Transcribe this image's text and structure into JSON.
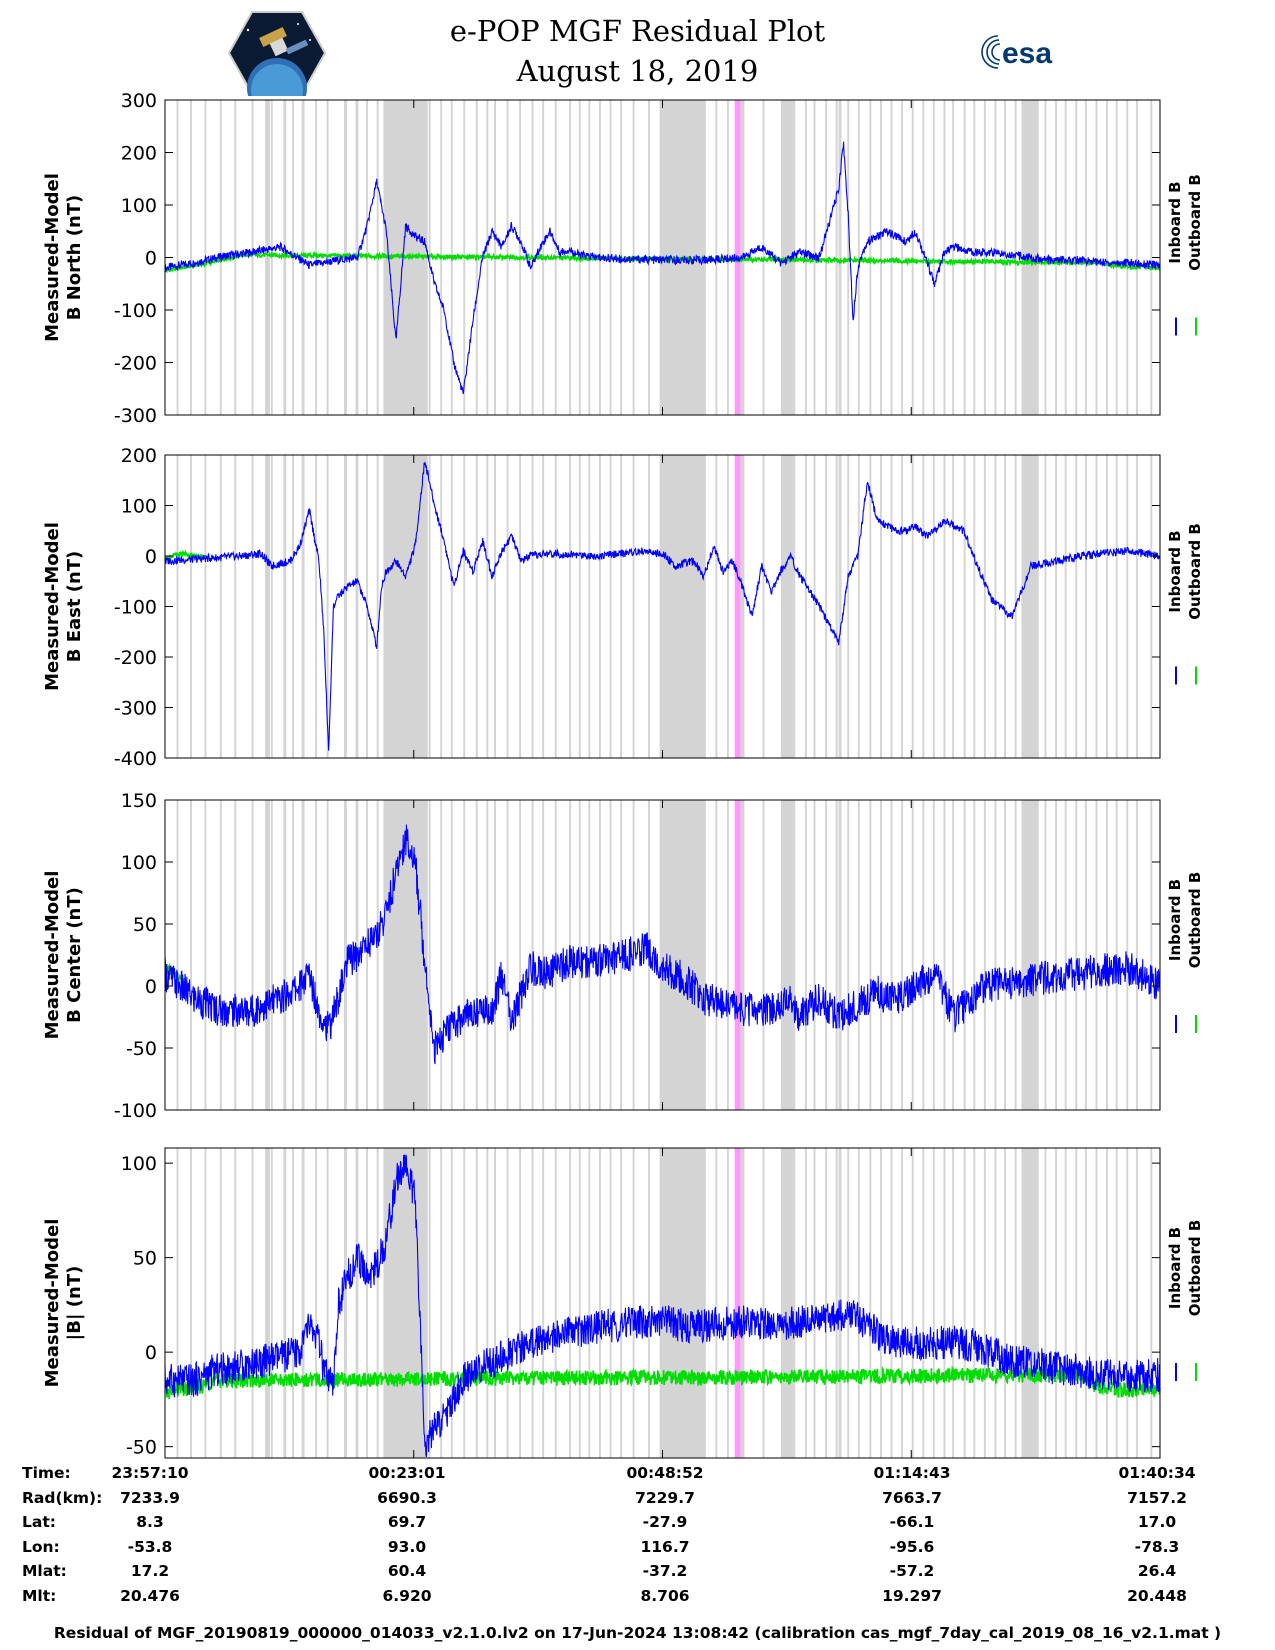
{
  "header": {
    "title_line1": "e-POP MGF Residual Plot",
    "title_line2": "August 18, 2019",
    "logo_left_alt": "CASSIOPE mission patch",
    "logo_right_text": "esa"
  },
  "legend": {
    "inboard": "Inboard B",
    "outboard": "Outboard B"
  },
  "colors": {
    "inboard": "#0000ff",
    "outboard": "#00dd00",
    "gray_band": "#d4d4d4",
    "pink_band": "#ff99ff",
    "esa_blue": "#003a70"
  },
  "chart_data": [
    {
      "type": "line",
      "ylabel_line1": "Measured-Model",
      "ylabel_line2": "B North (nT)",
      "ylim": [
        -300,
        300
      ],
      "yticks": [
        300,
        200,
        100,
        0,
        -100,
        -200,
        -300
      ],
      "xlim_minutes": [
        0,
        103.4
      ],
      "series": [
        {
          "name": "Inboard B",
          "x": [
            0,
            3,
            6,
            9,
            12,
            15,
            18,
            20,
            21,
            22,
            23,
            24,
            25,
            26,
            27,
            28,
            29,
            30,
            31,
            32,
            33,
            34,
            35,
            36,
            37,
            38,
            39,
            40,
            41,
            42,
            43,
            45,
            48,
            52,
            56,
            60,
            62,
            64,
            66,
            68,
            70,
            70.5,
            71,
            71.5,
            72,
            72.5,
            73,
            74,
            75,
            76,
            77,
            78,
            79,
            80,
            81,
            82,
            83,
            84,
            86,
            88,
            90,
            92,
            95,
            98,
            100,
            103.4
          ],
          "y": [
            -20,
            -10,
            2,
            10,
            20,
            -15,
            -5,
            0,
            60,
            145,
            50,
            -160,
            60,
            40,
            30,
            -50,
            -100,
            -200,
            -260,
            -120,
            0,
            50,
            20,
            60,
            30,
            -20,
            20,
            50,
            10,
            15,
            5,
            0,
            -3,
            -5,
            -5,
            0,
            20,
            -10,
            10,
            0,
            130,
            220,
            80,
            -120,
            -20,
            10,
            30,
            40,
            50,
            40,
            30,
            50,
            0,
            -50,
            10,
            20,
            15,
            10,
            10,
            5,
            0,
            -5,
            -5,
            -10,
            -10,
            -15
          ],
          "spread": 8
        },
        {
          "name": "Outboard B",
          "x": [
            0,
            4,
            8,
            97,
            100,
            103.4
          ],
          "y": [
            -25,
            -12,
            5,
            -10,
            -18,
            -20
          ]
        }
      ]
    },
    {
      "type": "line",
      "ylabel_line1": "Measured-Model",
      "ylabel_line2": "B East (nT)",
      "ylim": [
        -400,
        200
      ],
      "yticks": [
        200,
        100,
        0,
        -100,
        -200,
        -300,
        -400
      ],
      "xlim_minutes": [
        0,
        103.4
      ],
      "series": [
        {
          "name": "Inboard B",
          "x": [
            0,
            4,
            8,
            10,
            11,
            13,
            14,
            15,
            16,
            16.5,
            17,
            17.5,
            18,
            19,
            20,
            21,
            22,
            22.5,
            23,
            24,
            25,
            26,
            27,
            28,
            29,
            30,
            31,
            32,
            33,
            34,
            35,
            36,
            37,
            38,
            40,
            45,
            50,
            52,
            53,
            55,
            56,
            57,
            58,
            59,
            60,
            61,
            62,
            63,
            64,
            65,
            66,
            68,
            70,
            71,
            72,
            73,
            74,
            75,
            76,
            77,
            78,
            79,
            80,
            81,
            82,
            83,
            84,
            86,
            88,
            90,
            95,
            100,
            103.4
          ],
          "y": [
            -10,
            -5,
            0,
            5,
            -20,
            -10,
            20,
            90,
            -10,
            -150,
            -390,
            -100,
            -80,
            -60,
            -50,
            -100,
            -180,
            -60,
            -30,
            -10,
            -40,
            20,
            190,
            100,
            30,
            -60,
            10,
            -30,
            30,
            -40,
            10,
            40,
            -10,
            0,
            5,
            0,
            10,
            0,
            -20,
            -10,
            -40,
            20,
            -30,
            -10,
            -60,
            -120,
            -20,
            -70,
            -30,
            0,
            -40,
            -100,
            -170,
            -40,
            0,
            150,
            70,
            60,
            50,
            50,
            60,
            40,
            50,
            70,
            60,
            50,
            0,
            -90,
            -120,
            -20,
            0,
            10,
            0
          ],
          "spread": 8
        },
        {
          "name": "Outboard B",
          "x": [
            0,
            1,
            2,
            3,
            4
          ],
          "y": [
            -5,
            2,
            5,
            0,
            0
          ]
        }
      ]
    },
    {
      "type": "line",
      "ylabel_line1": "Measured-Model",
      "ylabel_line2": "B Center (nT)",
      "ylim": [
        -100,
        150
      ],
      "yticks": [
        150,
        100,
        50,
        0,
        -50,
        -100
      ],
      "xlim_minutes": [
        0,
        103.4
      ],
      "series": [
        {
          "name": "Inboard B",
          "x": [
            0,
            3,
            6,
            9,
            12,
            14,
            15,
            16,
            17,
            18,
            19,
            20,
            21,
            22,
            23,
            24,
            25,
            26,
            27,
            28,
            29,
            30,
            32,
            34,
            35,
            36,
            38,
            40,
            42,
            45,
            48,
            50,
            52,
            54,
            56,
            58,
            60,
            62,
            64,
            65,
            66,
            68,
            70,
            72,
            74,
            75,
            76,
            78,
            80,
            82,
            85,
            90,
            95,
            100,
            103.4
          ],
          "y": [
            10,
            -10,
            -20,
            -20,
            -10,
            0,
            10,
            -20,
            -35,
            -10,
            20,
            25,
            35,
            40,
            60,
            90,
            120,
            100,
            20,
            -50,
            -40,
            -30,
            -20,
            -20,
            10,
            -30,
            15,
            10,
            20,
            20,
            25,
            30,
            15,
            5,
            -10,
            -15,
            -20,
            -20,
            -15,
            -10,
            -25,
            -10,
            -25,
            -15,
            -5,
            -10,
            -10,
            0,
            10,
            -25,
            0,
            5,
            10,
            15,
            0
          ],
          "spread": 14
        },
        {
          "name": "Outboard B",
          "x": [
            0,
            1,
            2
          ],
          "y": [
            15,
            10,
            5
          ]
        }
      ]
    },
    {
      "type": "line",
      "ylabel_line1": "Measured-Model",
      "ylabel_line2": "|B| (nT)",
      "ylim": [
        -56,
        108
      ],
      "yticks": [
        100,
        50,
        0,
        -50
      ],
      "xlim_minutes": [
        0,
        103.4
      ],
      "series": [
        {
          "name": "Inboard B",
          "x": [
            0,
            3,
            5,
            10,
            14,
            15,
            15.5,
            16,
            16.5,
            17,
            17.5,
            18,
            19,
            20,
            21,
            22,
            23,
            24,
            25,
            26,
            27,
            28,
            29,
            30,
            31,
            32,
            34,
            36,
            38,
            40,
            42,
            44,
            46,
            48,
            50,
            52,
            54,
            56,
            58,
            60,
            62,
            64,
            66,
            68,
            70,
            72,
            74,
            76,
            78,
            80,
            82,
            84,
            86,
            88,
            90,
            92,
            95,
            98,
            100,
            103.4
          ],
          "y": [
            -15,
            -15,
            -10,
            -5,
            0,
            15,
            10,
            5,
            -10,
            -15,
            -20,
            25,
            40,
            50,
            40,
            45,
            60,
            90,
            100,
            80,
            -50,
            -40,
            -35,
            -25,
            -15,
            -10,
            -5,
            0,
            5,
            8,
            10,
            12,
            14,
            15,
            16,
            16,
            14,
            14,
            15,
            16,
            15,
            14,
            16,
            18,
            20,
            18,
            10,
            5,
            5,
            5,
            5,
            4,
            0,
            -5,
            -5,
            -8,
            -10,
            -12,
            -13,
            -12
          ],
          "spread": 9
        },
        {
          "name": "Outboard B",
          "x": [
            0,
            1,
            2,
            3,
            4,
            5,
            95,
            97,
            99,
            101,
            103.4
          ],
          "y": [
            -22,
            -20,
            -20,
            -18,
            -18,
            -15,
            -12,
            -18,
            -20,
            -20,
            -20
          ]
        }
      ]
    }
  ],
  "x_axis": {
    "tick_times": [
      "23:57:10",
      "00:23:01",
      "00:48:52",
      "01:14:43",
      "01:40:34"
    ],
    "tick_minutes": [
      0,
      25.85,
      51.7,
      77.55,
      103.4
    ]
  },
  "gray_bands": [
    [
      11.0,
      11.2
    ],
    [
      12.3,
      12.6
    ],
    [
      14.2,
      14.5
    ],
    [
      15.6,
      15.8
    ],
    [
      16.8,
      17.0
    ],
    [
      18.6,
      18.9
    ],
    [
      19.8,
      20.1
    ],
    [
      20.9,
      21.1
    ],
    [
      22.0,
      22.2
    ],
    [
      23.2,
      23.4
    ],
    [
      24.4,
      24.6
    ],
    [
      26.2,
      26.5
    ],
    [
      27.4,
      27.6
    ],
    [
      28.6,
      28.8
    ],
    [
      29.7,
      29.9
    ],
    [
      31.0,
      31.2
    ],
    [
      32.3,
      32.5
    ],
    [
      34.2,
      34.4
    ],
    [
      35.5,
      35.7
    ],
    [
      36.8,
      37.0
    ],
    [
      38.1,
      38.3
    ],
    [
      39.2,
      39.4
    ],
    [
      40.5,
      40.7
    ],
    [
      42.0,
      42.2
    ],
    [
      44.0,
      44.2
    ],
    [
      46.2,
      46.4
    ],
    [
      48.6,
      48.8
    ],
    [
      50.2,
      50.4
    ],
    [
      52.6,
      52.8
    ],
    [
      54.5,
      54.7
    ],
    [
      55.8,
      56.0
    ],
    [
      60.0,
      60.2
    ],
    [
      62.1,
      62.3
    ],
    [
      64.2,
      64.4
    ],
    [
      66.5,
      66.7
    ],
    [
      68.6,
      68.8
    ],
    [
      70.9,
      71.1
    ],
    [
      73.2,
      73.4
    ],
    [
      75.4,
      75.6
    ],
    [
      77.6,
      77.8
    ],
    [
      79.8,
      80.0
    ],
    [
      81.8,
      82.0
    ],
    [
      84.0,
      84.2
    ],
    [
      86.2,
      86.4
    ],
    [
      88.3,
      88.5
    ],
    [
      90.4,
      90.6
    ],
    [
      92.5,
      92.7
    ],
    [
      94.6,
      94.8
    ],
    [
      96.7,
      96.9
    ],
    [
      98.8,
      99.0
    ],
    [
      100.9,
      101.1
    ],
    [
      102.4,
      102.6
    ],
    [
      1.2,
      1.4
    ],
    [
      2.6,
      2.8
    ],
    [
      4.1,
      4.3
    ],
    [
      5.7,
      5.9
    ],
    [
      7.2,
      7.4
    ],
    [
      9.0,
      9.2
    ],
    [
      13.2,
      13.4
    ],
    [
      33.4,
      33.6
    ],
    [
      43.0,
      43.2
    ],
    [
      45.1,
      45.3
    ],
    [
      47.3,
      47.5
    ],
    [
      57.2,
      57.4
    ],
    [
      58.4,
      58.6
    ],
    [
      65.3,
      65.5
    ],
    [
      67.4,
      67.6
    ],
    [
      69.7,
      69.9
    ],
    [
      72.0,
      72.2
    ],
    [
      74.3,
      74.5
    ],
    [
      76.5,
      76.7
    ],
    [
      78.7,
      78.9
    ],
    [
      80.9,
      81.1
    ],
    [
      83.0,
      83.2
    ],
    [
      85.1,
      85.3
    ],
    [
      87.2,
      87.4
    ],
    [
      89.3,
      89.5
    ],
    [
      91.4,
      91.6
    ],
    [
      93.5,
      93.7
    ],
    [
      95.6,
      95.8
    ],
    [
      97.8,
      98.0
    ],
    [
      99.9,
      100.1
    ]
  ],
  "gray_blocks": [
    [
      10.4,
      10.9
    ],
    [
      22.7,
      27.3
    ],
    [
      51.4,
      56.2
    ],
    [
      64.0,
      65.3
    ],
    [
      89.0,
      90.8
    ],
    [
      59.8,
      60.2
    ],
    [
      70.0,
      70.3
    ]
  ],
  "pink_band": [
    59.2,
    59.8
  ],
  "info_table": {
    "labels": [
      "Time:",
      "Rad(km):",
      "Lat:",
      "Lon:",
      "Mlat:",
      "Mlt:"
    ],
    "columns": [
      [
        "23:57:10",
        "7233.9",
        "8.3",
        "-53.8",
        "17.2",
        "20.476"
      ],
      [
        "00:23:01",
        "6690.3",
        "69.7",
        "93.0",
        "60.4",
        "6.920"
      ],
      [
        "00:48:52",
        "7229.7",
        "-27.9",
        "116.7",
        "-37.2",
        "8.706"
      ],
      [
        "01:14:43",
        "7663.7",
        "-66.1",
        "-95.6",
        "-57.2",
        "19.297"
      ],
      [
        "01:40:34",
        "7157.2",
        "17.0",
        "-78.3",
        "26.4",
        "20.448"
      ]
    ]
  },
  "footer": "Residual of MGF_20190819_000000_014033_v2.1.0.lv2 on 17-Jun-2024 13:08:42 (calibration cas_mgf_7day_cal_2019_08_16_v2.1.mat )"
}
